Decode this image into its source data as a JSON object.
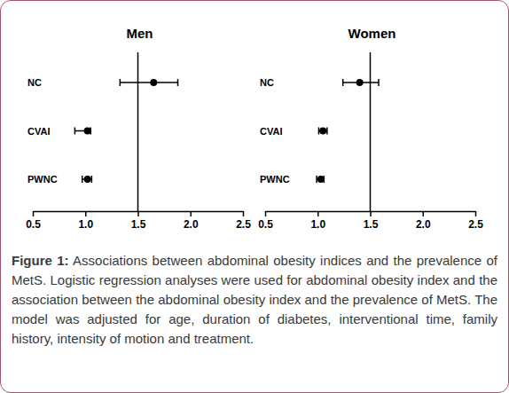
{
  "chart_data": [
    {
      "type": "forest",
      "title": "Men",
      "color": "#000000",
      "categories": [
        "NC",
        "CVAI",
        "PWNC"
      ],
      "values": [
        1.65,
        1.02,
        1.02
      ],
      "ci_low": [
        1.33,
        0.9,
        0.97
      ],
      "ci_high": [
        1.88,
        1.05,
        1.06
      ],
      "reference": 1.5,
      "xlim": [
        0.5,
        2.5
      ],
      "xticks": [
        0.5,
        {
          "value": 1,
          "label": "1.0"
        },
        1.5,
        {
          "value": 2,
          "label": "2.0"
        },
        2.5
      ]
    },
    {
      "type": "forest",
      "title": "Women",
      "color": "#000000",
      "categories": [
        "NC",
        "CVAI",
        "PWNC"
      ],
      "values": [
        1.4,
        1.05,
        1.03
      ],
      "ci_low": [
        1.24,
        1.01,
        0.99
      ],
      "ci_high": [
        1.58,
        1.09,
        1.06
      ],
      "reference": 1.5,
      "xlim": [
        0.5,
        2.5
      ],
      "xticks": [
        0.5,
        {
          "value": 1,
          "label": "1.0"
        },
        1.5,
        {
          "value": 2,
          "label": "2.0"
        },
        2.5
      ]
    }
  ],
  "figure": {
    "label": "Figure 1:",
    "text": "Associations between abdominal obesity indices and the prevalence of MetS. Logistic regression analyses were used for abdominal obesity index and the association between the abdominal obesity index and the prevalence of MetS. The model was adjusted for age, duration of diabetes, interventional time, family history, intensity of motion and treatment."
  }
}
